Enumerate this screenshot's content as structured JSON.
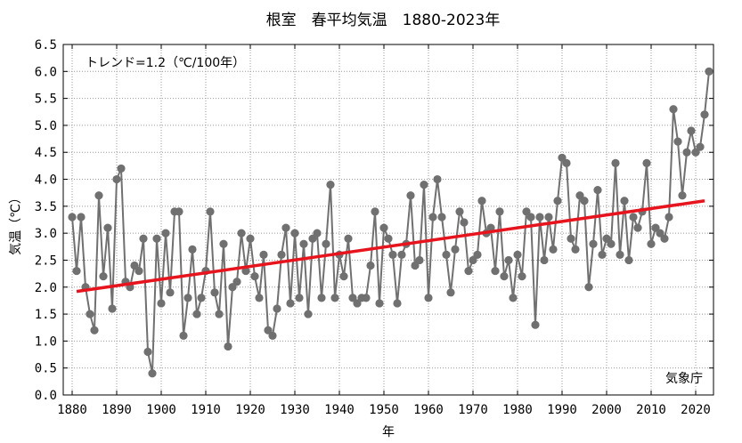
{
  "chart_data": {
    "type": "line",
    "title": "根室　春平均気温　1880-2023年",
    "xlabel": "年",
    "ylabel": "気温（℃）",
    "xlim": [
      1878,
      2024
    ],
    "ylim": [
      0.0,
      6.5
    ],
    "x_ticks": [
      "1880",
      "1890",
      "1900",
      "1910",
      "1920",
      "1930",
      "1940",
      "1950",
      "1960",
      "1970",
      "1980",
      "1990",
      "2000",
      "2010",
      "2020"
    ],
    "y_ticks": [
      "0.0",
      "0.5",
      "1.0",
      "1.5",
      "2.0",
      "2.5",
      "3.0",
      "3.5",
      "4.0",
      "4.5",
      "5.0",
      "5.5",
      "6.0",
      "6.5"
    ],
    "grid": true,
    "trend_label": "トレンド=1.2（℃/100年）",
    "source": "気象庁",
    "colors": {
      "series": "#707070",
      "trend": "#e8141d",
      "grid": "#999999"
    },
    "series": [
      {
        "x": [
          1880,
          1881,
          1882,
          1883,
          1884,
          1885,
          1886,
          1887,
          1888,
          1889,
          1890,
          1891,
          1892,
          1893,
          1894,
          1895,
          1896,
          1897,
          1898,
          1899,
          1900,
          1901,
          1902,
          1903,
          1904,
          1905,
          1906,
          1907,
          1908,
          1909,
          1910,
          1911,
          1912,
          1913,
          1914,
          1915,
          1916,
          1917,
          1918,
          1919,
          1920,
          1921,
          1922,
          1923,
          1924,
          1925,
          1926,
          1927,
          1928,
          1929,
          1930,
          1931,
          1932,
          1933,
          1934,
          1935,
          1936,
          1937,
          1938,
          1939,
          1940,
          1941,
          1942,
          1943,
          1944,
          1945,
          1946,
          1947,
          1948,
          1949,
          1950,
          1951,
          1952,
          1953,
          1954,
          1955,
          1956,
          1957,
          1958,
          1959,
          1960,
          1961,
          1962,
          1963,
          1964,
          1965,
          1966,
          1967,
          1968,
          1969,
          1970,
          1971,
          1972,
          1973,
          1974,
          1975,
          1976,
          1977,
          1978,
          1979,
          1980,
          1981,
          1982,
          1983,
          1984,
          1985,
          1986,
          1987,
          1988,
          1989,
          1990,
          1991,
          1992,
          1993,
          1994,
          1995,
          1996,
          1997,
          1998,
          1999,
          2000,
          2001,
          2002,
          2003,
          2004,
          2005,
          2006,
          2007,
          2008,
          2009,
          2010,
          2011,
          2012,
          2013,
          2014,
          2015,
          2016,
          2017,
          2018,
          2019,
          2020,
          2021,
          2022,
          2023
        ],
        "values": [
          3.3,
          2.3,
          3.3,
          2.0,
          1.5,
          1.2,
          3.7,
          2.2,
          3.1,
          1.6,
          4.0,
          4.2,
          2.1,
          2.0,
          2.4,
          2.3,
          2.9,
          0.8,
          0.4,
          2.9,
          1.7,
          3.0,
          1.9,
          3.4,
          3.4,
          1.1,
          1.8,
          2.7,
          1.5,
          1.8,
          2.3,
          3.4,
          1.9,
          1.5,
          2.8,
          0.9,
          2.0,
          2.1,
          3.0,
          2.3,
          2.9,
          2.2,
          1.8,
          2.6,
          1.2,
          1.1,
          1.6,
          2.6,
          3.1,
          1.7,
          3.0,
          1.8,
          2.8,
          1.5,
          2.9,
          3.0,
          1.8,
          2.8,
          3.9,
          1.8,
          2.6,
          2.2,
          2.9,
          1.8,
          1.7,
          1.8,
          1.8,
          2.4,
          3.4,
          1.7,
          3.1,
          2.9,
          2.6,
          1.7,
          2.6,
          2.8,
          3.7,
          2.4,
          2.5,
          3.9,
          1.8,
          3.3,
          4.0,
          3.3,
          2.6,
          1.9,
          2.7,
          3.4,
          3.2,
          2.3,
          2.5,
          2.6,
          3.6,
          3.0,
          3.1,
          2.3,
          3.4,
          2.2,
          2.5,
          1.8,
          2.6,
          2.2,
          3.4,
          3.3,
          1.3,
          3.3,
          2.5,
          3.3,
          2.7,
          3.6,
          4.4,
          4.3,
          2.9,
          2.7,
          3.7,
          3.6,
          2.0,
          2.8,
          3.8,
          2.6,
          2.9,
          2.8,
          4.3,
          2.6,
          3.6,
          2.5,
          3.3,
          3.1,
          3.4,
          4.3,
          2.8,
          3.1,
          3.0,
          2.9,
          3.3,
          5.3,
          4.7,
          3.7,
          4.5,
          4.9,
          4.5,
          4.6,
          5.2,
          6.0
        ]
      }
    ],
    "trend_line": {
      "x": [
        1881,
        2022
      ],
      "values": [
        1.92,
        3.6
      ]
    }
  }
}
